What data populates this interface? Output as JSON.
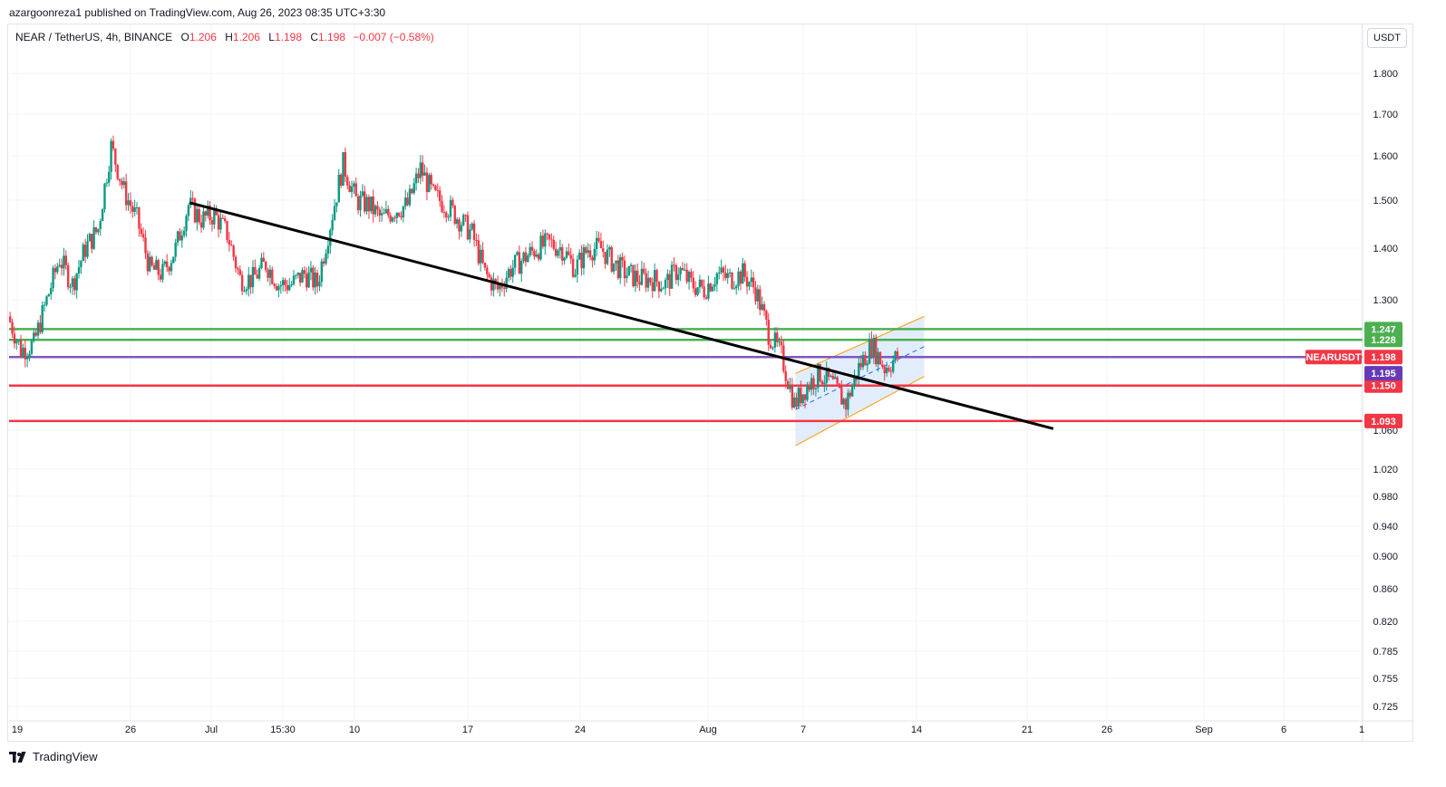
{
  "header": {
    "publish_text": "azargoonreza1 published on TradingView.com, Aug 26, 2023 08:35 UTC+3:30"
  },
  "legend": {
    "symbol": "NEAR / TetherUS, 4h, BINANCE",
    "open_label": "O",
    "open_value": "1.206",
    "high_label": "H",
    "high_value": "1.206",
    "low_label": "L",
    "low_value": "1.198",
    "close_label": "C",
    "close_value": "1.198",
    "change_value": "−0.007 (−0.58%)"
  },
  "toolbar": {
    "currency_label": "USDT"
  },
  "footer": {
    "brand": "TradingView",
    "brand_icon": "tradingview-logo-icon"
  },
  "colors": {
    "up": "#089981",
    "down": "#f23645",
    "green_level": "#4caf50",
    "red_level": "#f23645",
    "purple_level": "#7e57c2",
    "trendline": "#000000",
    "channel": "#ff9800",
    "channel_fill": "#dbe8fb",
    "badge_symbol": "#f23645",
    "badge_price": "#673ab7"
  },
  "chart_data": {
    "type": "candlestick",
    "symbol": "NEARUSDT",
    "interval": "4h",
    "y_scale": "log",
    "ylim": [
      0.71,
      1.92
    ],
    "y_ticks": [
      "1.800",
      "1.700",
      "1.600",
      "1.500",
      "1.400",
      "1.300",
      "1.228",
      "1.150",
      "1.060",
      "1.020",
      "0.980",
      "0.940",
      "0.900",
      "0.860",
      "0.820",
      "0.785",
      "0.755",
      "0.725"
    ],
    "x_ticks": [
      "19",
      "26",
      "Jul",
      "15:30",
      "10",
      "17",
      "24",
      "Aug",
      "7",
      "14",
      "21",
      "26",
      "Sep",
      "6",
      "1"
    ],
    "x_range": [
      "2023-06-18",
      "2023-10-01"
    ],
    "ohlc_path": [
      {
        "date": "2023-06-18",
        "close": 1.27
      },
      {
        "date": "2023-06-19",
        "close": 1.21
      },
      {
        "date": "2023-06-20",
        "close": 1.22
      },
      {
        "date": "2023-06-21",
        "close": 1.3
      },
      {
        "date": "2023-06-22",
        "close": 1.38
      },
      {
        "date": "2023-06-23",
        "close": 1.33
      },
      {
        "date": "2023-06-24",
        "close": 1.4
      },
      {
        "date": "2023-06-25",
        "close": 1.44
      },
      {
        "date": "2023-06-26",
        "close": 1.62
      },
      {
        "date": "2023-06-27",
        "close": 1.52
      },
      {
        "date": "2023-06-28",
        "close": 1.46
      },
      {
        "date": "2023-06-29",
        "close": 1.36
      },
      {
        "date": "2023-06-30",
        "close": 1.35
      },
      {
        "date": "2023-07-01",
        "close": 1.4
      },
      {
        "date": "2023-07-02",
        "close": 1.49
      },
      {
        "date": "2023-07-03",
        "close": 1.46
      },
      {
        "date": "2023-07-04",
        "close": 1.47
      },
      {
        "date": "2023-07-05",
        "close": 1.43
      },
      {
        "date": "2023-07-06",
        "close": 1.34
      },
      {
        "date": "2023-07-07",
        "close": 1.34
      },
      {
        "date": "2023-07-08",
        "close": 1.37
      },
      {
        "date": "2023-07-09",
        "close": 1.33
      },
      {
        "date": "2023-07-10",
        "close": 1.33
      },
      {
        "date": "2023-07-11",
        "close": 1.35
      },
      {
        "date": "2023-07-12",
        "close": 1.33
      },
      {
        "date": "2023-07-13",
        "close": 1.45
      },
      {
        "date": "2023-07-14",
        "close": 1.58
      },
      {
        "date": "2023-07-15",
        "close": 1.5
      },
      {
        "date": "2023-07-16",
        "close": 1.49
      },
      {
        "date": "2023-07-17",
        "close": 1.46
      },
      {
        "date": "2023-07-18",
        "close": 1.48
      },
      {
        "date": "2023-07-19",
        "close": 1.49
      },
      {
        "date": "2023-07-20",
        "close": 1.57
      },
      {
        "date": "2023-07-21",
        "close": 1.51
      },
      {
        "date": "2023-07-22",
        "close": 1.49
      },
      {
        "date": "2023-07-23",
        "close": 1.46
      },
      {
        "date": "2023-07-24",
        "close": 1.43
      },
      {
        "date": "2023-07-25",
        "close": 1.35
      },
      {
        "date": "2023-07-26",
        "close": 1.32
      },
      {
        "date": "2023-07-27",
        "close": 1.36
      },
      {
        "date": "2023-07-28",
        "close": 1.38
      },
      {
        "date": "2023-07-29",
        "close": 1.4
      },
      {
        "date": "2023-07-30",
        "close": 1.41
      },
      {
        "date": "2023-07-31",
        "close": 1.4
      },
      {
        "date": "2023-08-01",
        "close": 1.36
      },
      {
        "date": "2023-08-02",
        "close": 1.4
      },
      {
        "date": "2023-08-03",
        "close": 1.4
      },
      {
        "date": "2023-08-04",
        "close": 1.37
      },
      {
        "date": "2023-08-05",
        "close": 1.35
      },
      {
        "date": "2023-08-06",
        "close": 1.34
      },
      {
        "date": "2023-08-07",
        "close": 1.34
      },
      {
        "date": "2023-08-08",
        "close": 1.33
      },
      {
        "date": "2023-08-09",
        "close": 1.36
      },
      {
        "date": "2023-08-10",
        "close": 1.33
      },
      {
        "date": "2023-08-11",
        "close": 1.32
      },
      {
        "date": "2023-08-12",
        "close": 1.35
      },
      {
        "date": "2023-08-13",
        "close": 1.34
      },
      {
        "date": "2023-08-14",
        "close": 1.35
      },
      {
        "date": "2023-08-15",
        "close": 1.32
      },
      {
        "date": "2023-08-16",
        "close": 1.24
      },
      {
        "date": "2023-08-17",
        "close": 1.2
      },
      {
        "date": "2023-08-18",
        "close": 1.12
      },
      {
        "date": "2023-08-19",
        "close": 1.15
      },
      {
        "date": "2023-08-20",
        "close": 1.17
      },
      {
        "date": "2023-08-21",
        "close": 1.15
      },
      {
        "date": "2023-08-22",
        "close": 1.12
      },
      {
        "date": "2023-08-23",
        "close": 1.18
      },
      {
        "date": "2023-08-24",
        "close": 1.22
      },
      {
        "date": "2023-08-25",
        "close": 1.18
      },
      {
        "date": "2023-08-26",
        "close": 1.198
      }
    ],
    "horizontal_levels": [
      {
        "price": 1.247,
        "label": "1.247",
        "color": "#4caf50"
      },
      {
        "price": 1.228,
        "label": "1.228",
        "color": "#4caf50"
      },
      {
        "price": 1.198,
        "label": "1.198",
        "color": "#7e57c2"
      },
      {
        "price": 1.15,
        "label": "1.150",
        "color": "#f23645"
      },
      {
        "price": 1.093,
        "label": "1.093",
        "color": "#f23645"
      }
    ],
    "trendline": {
      "start": {
        "date": "2023-07-02",
        "price": 1.495
      },
      "end": {
        "date": "2023-09-07",
        "price": 1.081
      }
    },
    "channel": {
      "upper_start": {
        "date": "2023-08-18",
        "price": 1.17
      },
      "upper_end": {
        "date": "2023-08-28",
        "price": 1.27
      },
      "lower_start": {
        "date": "2023-08-18",
        "price": 1.055
      },
      "lower_end": {
        "date": "2023-08-28",
        "price": 1.165
      }
    },
    "badges": [
      {
        "text": "NEARUSDT",
        "price": 1.198,
        "color": "#f23645"
      },
      {
        "text": "1.198",
        "price": 1.198,
        "color": "#f23645"
      },
      {
        "text": "1.195",
        "price": 1.195,
        "color": "#673ab7"
      }
    ]
  }
}
